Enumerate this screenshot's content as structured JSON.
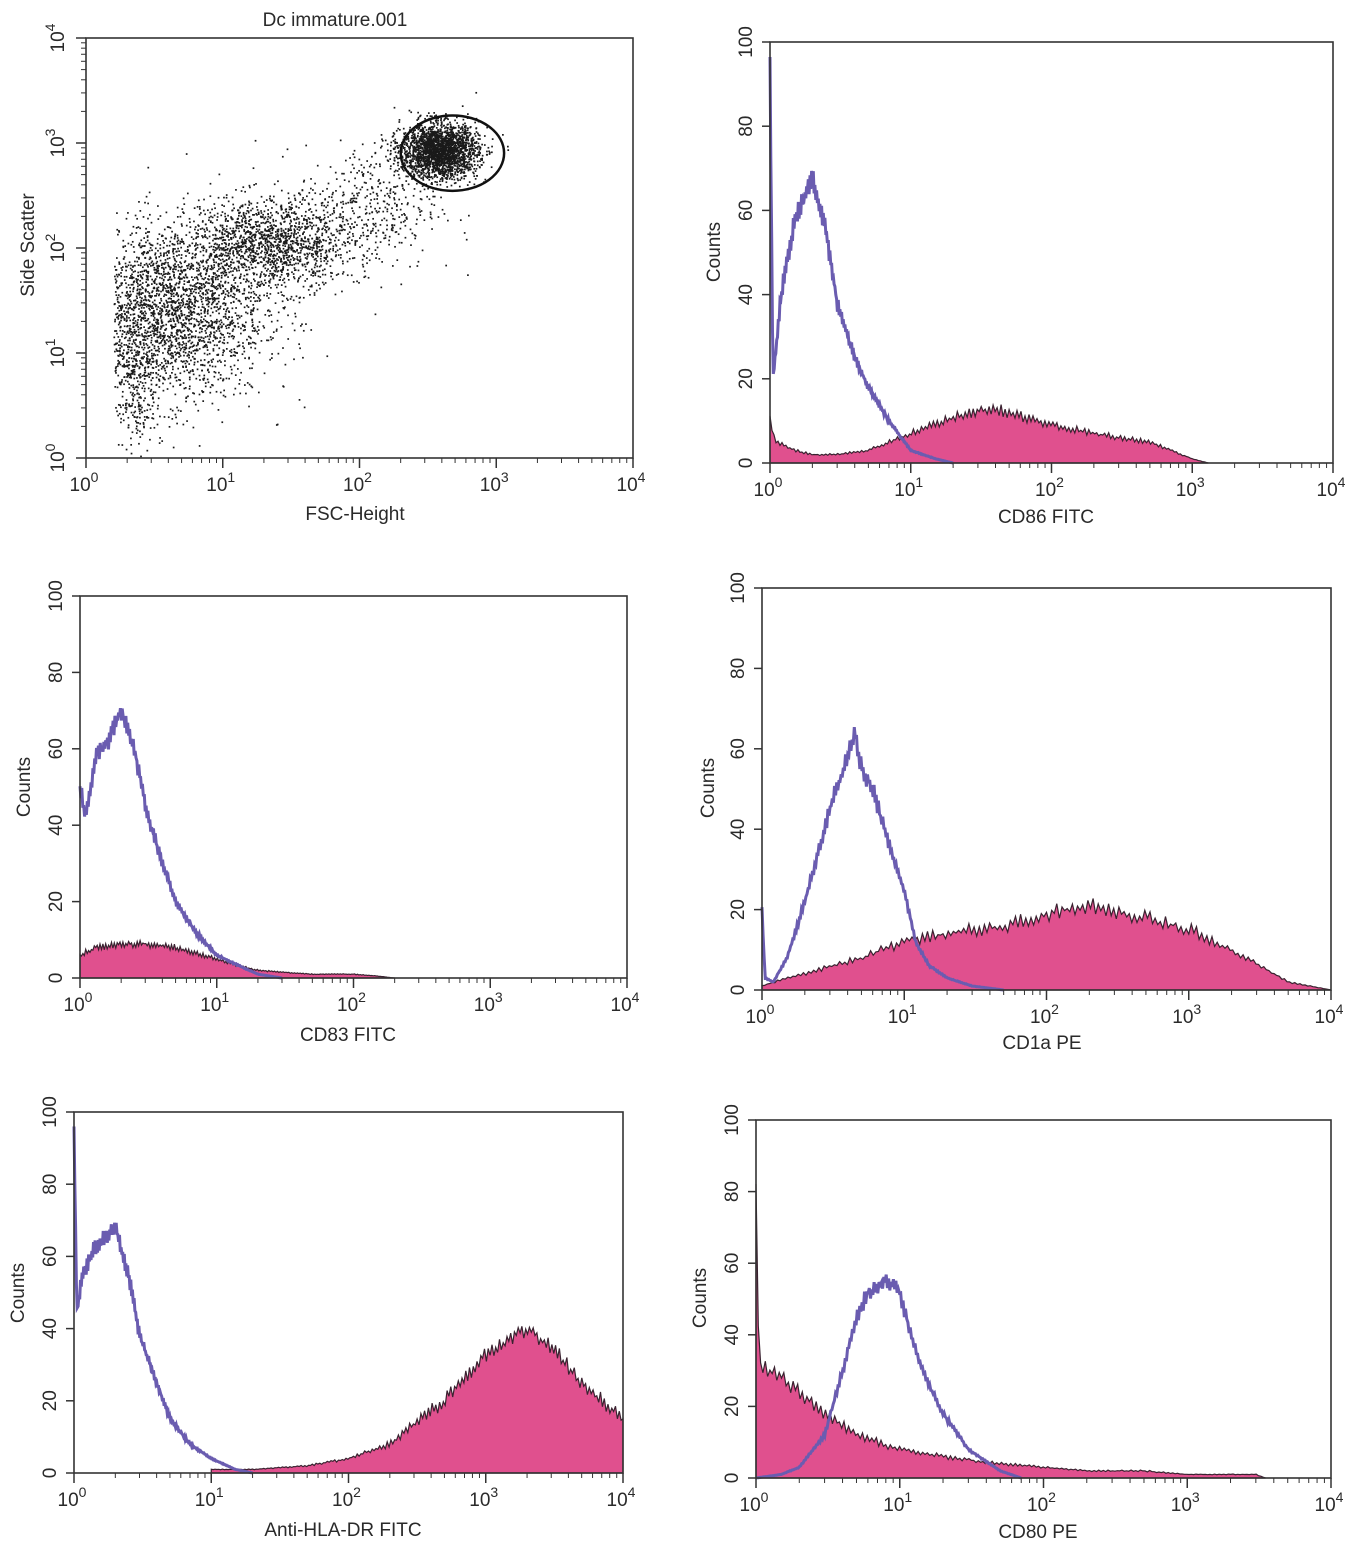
{
  "colors": {
    "isotype": "#6a5cb0",
    "fill": "#e0508e",
    "axis": "#333333",
    "dot": "#1a1a1a"
  },
  "chart_data": [
    {
      "type": "scatter",
      "title": "Dc immature.001",
      "xlabel": "FSC-Height",
      "ylabel": "Side Scatter",
      "xscale": "log",
      "yscale": "log",
      "xlim": [
        1,
        10000
      ],
      "ylim": [
        1,
        10000
      ],
      "ticks": [
        "10^0",
        "10^1",
        "10^2",
        "10^3",
        "10^4"
      ],
      "clusters": [
        {
          "x": 4,
          "y": 25,
          "spread_x": 0.35,
          "spread_y": 0.42,
          "n": 2600
        },
        {
          "x": 22,
          "y": 110,
          "spread_x": 0.3,
          "spread_y": 0.22,
          "n": 1500
        },
        {
          "x": 380,
          "y": 850,
          "spread_x": 0.14,
          "spread_y": 0.13,
          "n": 2300
        },
        {
          "x": 2.3,
          "y": 6,
          "spread_x": 0.08,
          "spread_y": 0.35,
          "n": 300
        },
        {
          "x": 120,
          "y": 250,
          "spread_x": 0.25,
          "spread_y": 0.3,
          "n": 400
        }
      ],
      "gate": {
        "cx": 520,
        "cy": 800,
        "log_rx": 0.6,
        "log_ry": 0.57
      }
    },
    {
      "type": "area",
      "xlabel": "CD86 FITC",
      "ylabel": "Counts",
      "xscale": "log",
      "xlim": [
        1,
        10000
      ],
      "ylim": [
        0,
        100
      ],
      "yticks": [
        0,
        20,
        40,
        60,
        80,
        100
      ],
      "ticks": [
        "10^0",
        "10^1",
        "10^2",
        "10^3",
        "10^4"
      ],
      "series": [
        {
          "role": "isotype",
          "x": [
            1,
            1.05,
            1.2,
            1.5,
            2,
            2.5,
            3,
            4,
            5,
            7,
            10,
            15,
            20
          ],
          "y": [
            95,
            20,
            40,
            58,
            68,
            55,
            38,
            25,
            18,
            10,
            3,
            1,
            0
          ]
        },
        {
          "role": "stained",
          "x": [
            1,
            1.1,
            1.5,
            2,
            3,
            5,
            10,
            20,
            40,
            100,
            200,
            500,
            1000,
            1300
          ],
          "y": [
            10,
            5,
            3,
            2,
            2,
            3,
            7,
            11,
            13,
            9,
            7,
            5,
            1,
            0
          ]
        }
      ]
    },
    {
      "type": "area",
      "xlabel": "CD83 FITC",
      "ylabel": "Counts",
      "xscale": "log",
      "xlim": [
        1,
        10000
      ],
      "ylim": [
        0,
        100
      ],
      "yticks": [
        0,
        20,
        40,
        60,
        80,
        100
      ],
      "ticks": [
        "10^0",
        "10^1",
        "10^2",
        "10^3",
        "10^4"
      ],
      "series": [
        {
          "role": "isotype",
          "x": [
            1,
            1.1,
            1.3,
            1.6,
            2,
            2.5,
            3,
            4,
            5,
            7,
            10,
            15,
            20,
            30
          ],
          "y": [
            50,
            42,
            58,
            62,
            70,
            60,
            45,
            30,
            20,
            12,
            6,
            3,
            1,
            0
          ]
        },
        {
          "role": "stained",
          "x": [
            1,
            1.3,
            2,
            3,
            5,
            8,
            12,
            20,
            50,
            100,
            150,
            200
          ],
          "y": [
            6,
            8,
            9,
            9,
            8,
            6,
            4,
            2,
            1,
            1,
            0.5,
            0
          ]
        }
      ]
    },
    {
      "type": "area",
      "xlabel": "CD1a PE",
      "ylabel": "Counts",
      "xscale": "log",
      "xlim": [
        1,
        10000
      ],
      "ylim": [
        0,
        100
      ],
      "yticks": [
        0,
        20,
        40,
        60,
        80,
        100
      ],
      "ticks": [
        "10^0",
        "10^1",
        "10^2",
        "10^3",
        "10^4"
      ],
      "series": [
        {
          "role": "isotype",
          "x": [
            1,
            1.05,
            1.2,
            1.5,
            2,
            3,
            4,
            4.5,
            5,
            6,
            8,
            10,
            12,
            15,
            20,
            30,
            50
          ],
          "y": [
            20,
            3,
            2,
            8,
            22,
            45,
            58,
            64,
            55,
            50,
            35,
            25,
            12,
            6,
            3,
            1,
            0
          ]
        },
        {
          "role": "stained",
          "x": [
            1,
            1.5,
            2,
            5,
            10,
            20,
            50,
            100,
            200,
            500,
            1000,
            2000,
            5000,
            10000
          ],
          "y": [
            1,
            3,
            4,
            8,
            12,
            14,
            16,
            19,
            21,
            18,
            15,
            10,
            2,
            0
          ]
        }
      ]
    },
    {
      "type": "area",
      "xlabel": "Anti-HLA-DR FITC",
      "ylabel": "Counts",
      "xscale": "log",
      "xlim": [
        1,
        10000
      ],
      "ylim": [
        0,
        100
      ],
      "yticks": [
        0,
        20,
        40,
        60,
        80,
        100
      ],
      "ticks": [
        "10^0",
        "10^1",
        "10^2",
        "10^3",
        "10^4"
      ],
      "series": [
        {
          "role": "isotype",
          "x": [
            1,
            1.05,
            1.15,
            1.4,
            2,
            2.5,
            3,
            4,
            5,
            7,
            10,
            15,
            20
          ],
          "y": [
            95,
            45,
            55,
            62,
            68,
            55,
            38,
            25,
            15,
            8,
            4,
            1,
            0
          ]
        },
        {
          "role": "stained",
          "x": [
            10,
            20,
            50,
            100,
            200,
            500,
            1000,
            2000,
            3000,
            5000,
            8000,
            10000
          ],
          "y": [
            1,
            1,
            2,
            4,
            8,
            20,
            33,
            40,
            35,
            25,
            18,
            15
          ]
        }
      ]
    },
    {
      "type": "area",
      "xlabel": "CD80 PE",
      "ylabel": "Counts",
      "xscale": "log",
      "xlim": [
        1,
        10000
      ],
      "ylim": [
        0,
        100
      ],
      "yticks": [
        0,
        20,
        40,
        60,
        80,
        100
      ],
      "ticks": [
        "10^0",
        "10^1",
        "10^2",
        "10^3",
        "10^4"
      ],
      "series": [
        {
          "role": "isotype",
          "x": [
            1,
            1.5,
            2,
            3,
            4,
            5,
            6,
            8,
            10,
            12,
            15,
            20,
            30,
            50,
            70
          ],
          "y": [
            0,
            1,
            3,
            12,
            30,
            45,
            52,
            55,
            52,
            40,
            28,
            18,
            8,
            2,
            0
          ]
        },
        {
          "role": "stained",
          "x": [
            1,
            1.05,
            1.5,
            2,
            3,
            5,
            10,
            20,
            50,
            100,
            200,
            500,
            1000,
            3000,
            3500
          ],
          "y": [
            80,
            32,
            28,
            24,
            18,
            12,
            8,
            6,
            4,
            3,
            2,
            2,
            1,
            1,
            0
          ]
        }
      ]
    }
  ]
}
